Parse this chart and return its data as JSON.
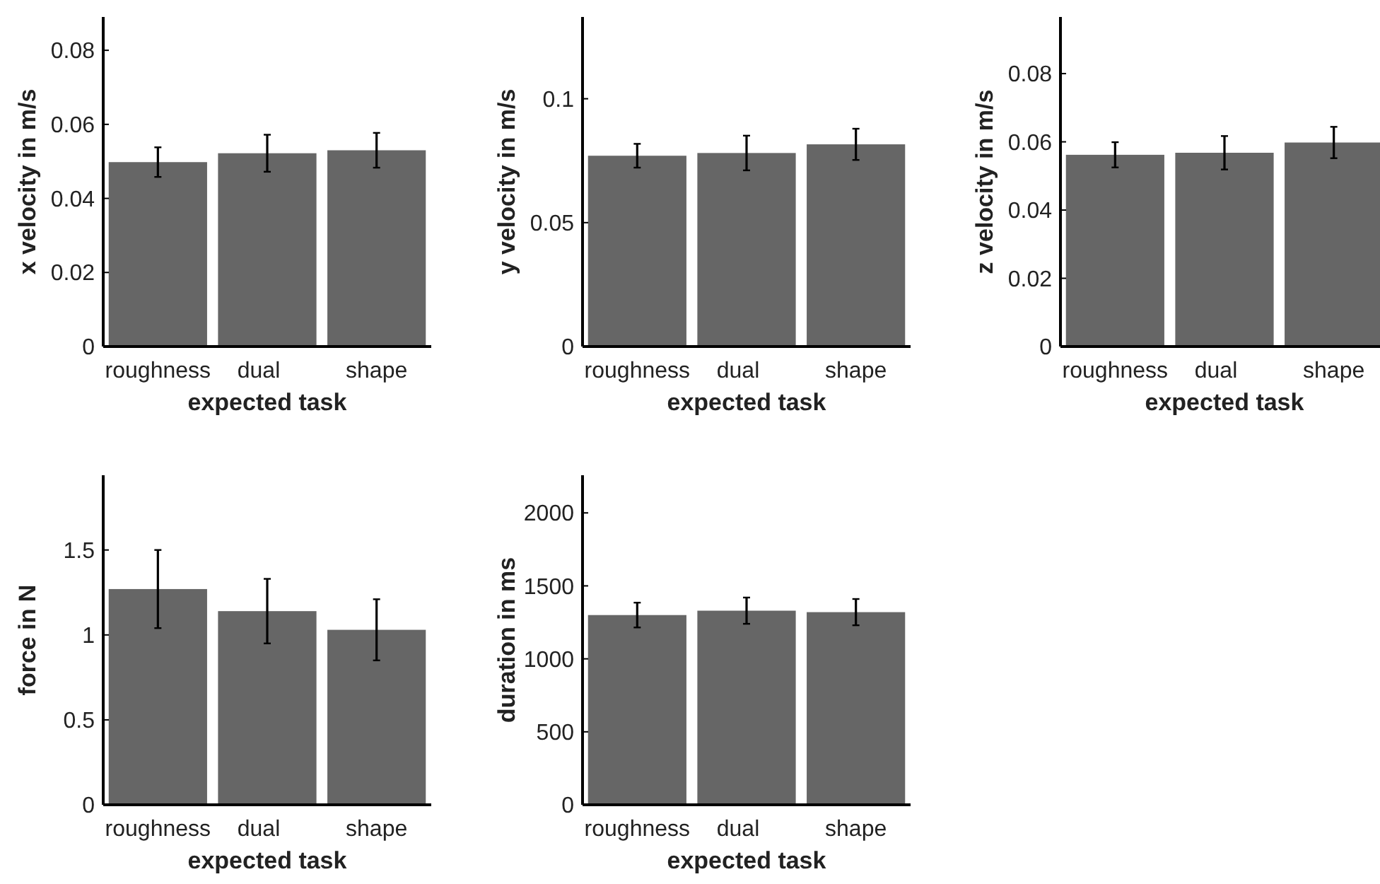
{
  "chart_data": [
    {
      "type": "bar",
      "xlabel": "expected task",
      "ylabel": "x velocity in m/s",
      "categories": [
        "roughness",
        "dual",
        "shape"
      ],
      "values": [
        0.0498,
        0.0522,
        0.053
      ],
      "errors": [
        0.004,
        0.005,
        0.0047
      ],
      "color": "#666666",
      "ylim": [
        0,
        0.089
      ],
      "yticks": [
        0,
        0.02,
        0.04,
        0.06,
        0.08
      ]
    },
    {
      "type": "bar",
      "xlabel": "expected task",
      "ylabel": "y velocity in m/s",
      "categories": [
        "roughness",
        "dual",
        "shape"
      ],
      "values": [
        0.077,
        0.0781,
        0.0816
      ],
      "errors": [
        0.0048,
        0.007,
        0.0063
      ],
      "color": "#666666",
      "ylim": [
        0,
        0.133
      ],
      "yticks": [
        0,
        0.05,
        0.1
      ]
    },
    {
      "type": "bar",
      "xlabel": "expected task",
      "ylabel": "z velocity in m/s",
      "categories": [
        "roughness",
        "dual",
        "shape"
      ],
      "values": [
        0.0562,
        0.0568,
        0.0598
      ],
      "errors": [
        0.0037,
        0.0049,
        0.0046
      ],
      "color": "#666666",
      "ylim": [
        0,
        0.0966
      ],
      "yticks": [
        0,
        0.02,
        0.04,
        0.06,
        0.08
      ]
    },
    {
      "type": "bar",
      "xlabel": "expected task",
      "ylabel": "force in N",
      "categories": [
        "roughness",
        "dual",
        "shape"
      ],
      "values": [
        1.27,
        1.14,
        1.03
      ],
      "errors": [
        0.23,
        0.19,
        0.18
      ],
      "color": "#666666",
      "ylim": [
        0,
        1.94
      ],
      "yticks": [
        0,
        0.5,
        1,
        1.5
      ]
    },
    {
      "type": "bar",
      "xlabel": "expected task",
      "ylabel": "duration in ms",
      "categories": [
        "roughness",
        "dual",
        "shape"
      ],
      "values": [
        1300,
        1330,
        1320
      ],
      "errors": [
        85,
        90,
        90
      ],
      "color": "#666666",
      "ylim": [
        0,
        2258
      ],
      "yticks": [
        0,
        500,
        1000,
        1500,
        2000
      ]
    }
  ]
}
